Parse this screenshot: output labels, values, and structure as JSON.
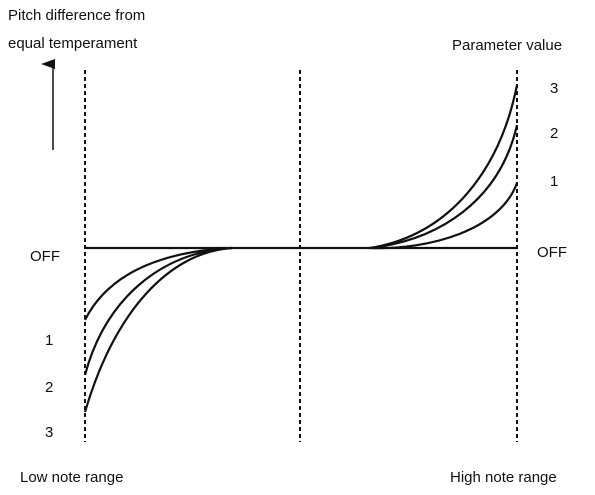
{
  "axis_label": {
    "line1": "Pitch difference from",
    "line2": "equal temperament"
  },
  "parameter_title": "Parameter value",
  "right_labels": [
    "3",
    "2",
    "1",
    "OFF"
  ],
  "left_labels": [
    "OFF",
    "1",
    "2",
    "3"
  ],
  "footer": {
    "left": "Low note range",
    "right": "High note range"
  }
}
